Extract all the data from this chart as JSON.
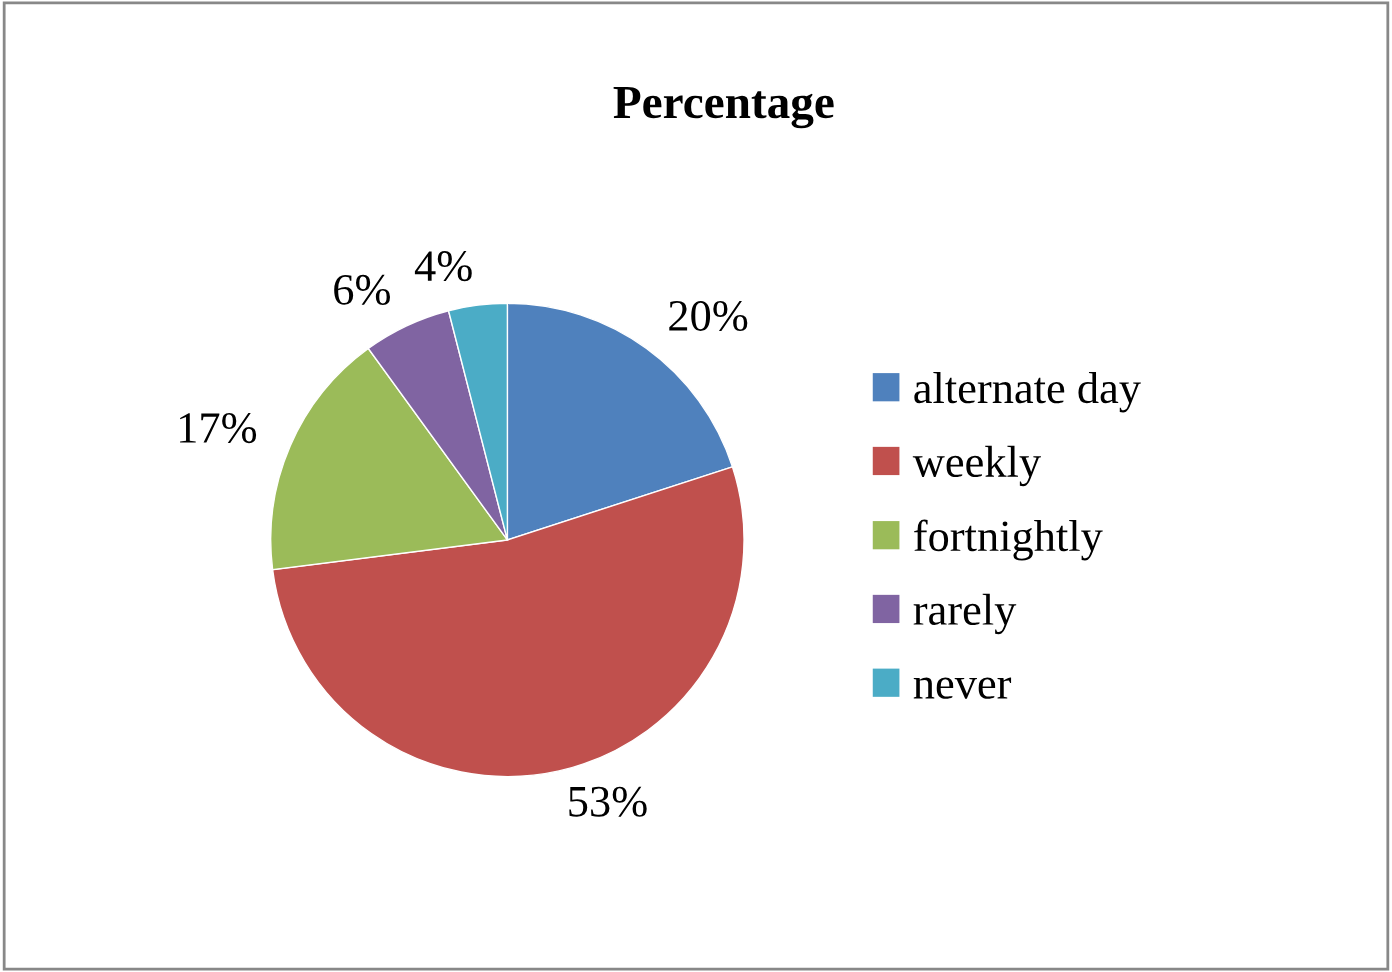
{
  "chart_data": {
    "type": "pie",
    "title": "Percentage",
    "categories": [
      "alternate day",
      "weekly",
      "fortnightly",
      "rarely",
      "never"
    ],
    "values": [
      20,
      53,
      17,
      6,
      4
    ],
    "value_labels": [
      "20%",
      "53%",
      "17%",
      "6%",
      "4%"
    ],
    "colors": [
      "#4f81bd",
      "#c0504d",
      "#9bbb59",
      "#8064a2",
      "#4bacc6"
    ],
    "legend": "right"
  }
}
